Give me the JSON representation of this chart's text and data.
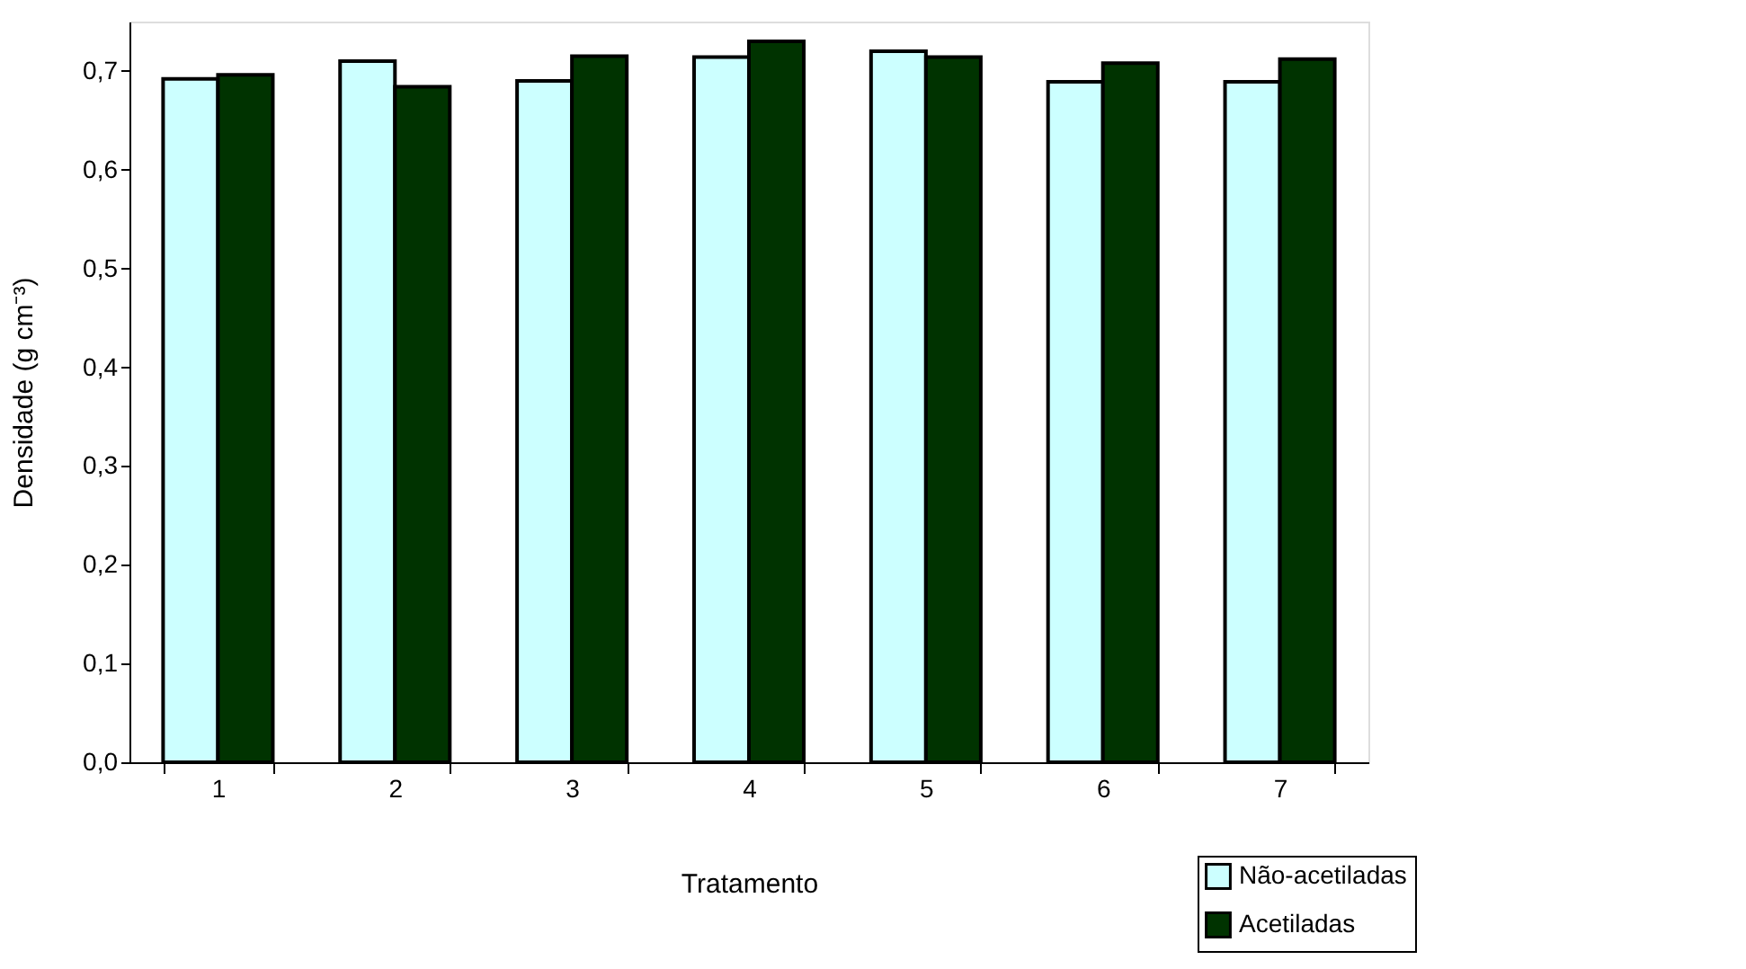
{
  "chart_data": {
    "type": "bar",
    "xlabel": "Tratamento",
    "ylabel": "Densidade (g cm⁻³)",
    "categories": [
      "1",
      "2",
      "3",
      "4",
      "5",
      "6",
      "7"
    ],
    "series": [
      {
        "name": "Não-acetiladas",
        "color": "#ccffff",
        "values": [
          0.692,
          0.71,
          0.69,
          0.714,
          0.72,
          0.689,
          0.689
        ]
      },
      {
        "name": "Acetiladas",
        "color": "#003300",
        "values": [
          0.696,
          0.684,
          0.715,
          0.73,
          0.714,
          0.708,
          0.712
        ]
      }
    ],
    "ylim": [
      0,
      0.75
    ],
    "yticks": [
      {
        "value": 0,
        "label": "0,0"
      },
      {
        "value": 0.1,
        "label": "0,1"
      },
      {
        "value": 0.2,
        "label": "0,2"
      },
      {
        "value": 0.3,
        "label": "0,3"
      },
      {
        "value": 0.4,
        "label": "0,4"
      },
      {
        "value": 0.5,
        "label": "0,5"
      },
      {
        "value": 0.6,
        "label": "0,6"
      },
      {
        "value": 0.7,
        "label": "0,7"
      }
    ],
    "grid": false,
    "legend": "bottom right"
  }
}
